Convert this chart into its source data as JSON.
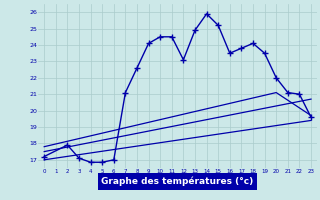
{
  "xlabel": "Graphe des températures (°c)",
  "bg_color": "#cce8e8",
  "grid_color": "#aacccc",
  "line_color": "#0000aa",
  "xlim": [
    -0.5,
    23.5
  ],
  "ylim": [
    16.5,
    26.5
  ],
  "xticks": [
    0,
    1,
    2,
    3,
    4,
    5,
    6,
    7,
    8,
    9,
    10,
    11,
    12,
    13,
    14,
    15,
    16,
    17,
    18,
    19,
    20,
    21,
    22,
    23
  ],
  "yticks": [
    17,
    18,
    19,
    20,
    21,
    22,
    23,
    24,
    25,
    26
  ],
  "line1_x": [
    0,
    2,
    3,
    4,
    5,
    6,
    7,
    8,
    9,
    10,
    11,
    12,
    13,
    14,
    15,
    16,
    17,
    18,
    19,
    20,
    21,
    22,
    23
  ],
  "line1_y": [
    17.2,
    17.9,
    17.1,
    16.85,
    16.85,
    17.0,
    21.1,
    22.6,
    24.1,
    24.5,
    24.5,
    23.1,
    24.9,
    25.9,
    25.2,
    23.5,
    23.8,
    24.1,
    23.5,
    22.0,
    21.1,
    21.0,
    19.6
  ],
  "line2_x": [
    0,
    23
  ],
  "line2_y": [
    17.0,
    19.4
  ],
  "line3_x": [
    0,
    23
  ],
  "line3_y": [
    17.5,
    20.7
  ],
  "line4_x": [
    0,
    20,
    23
  ],
  "line4_y": [
    17.8,
    21.1,
    19.7
  ]
}
